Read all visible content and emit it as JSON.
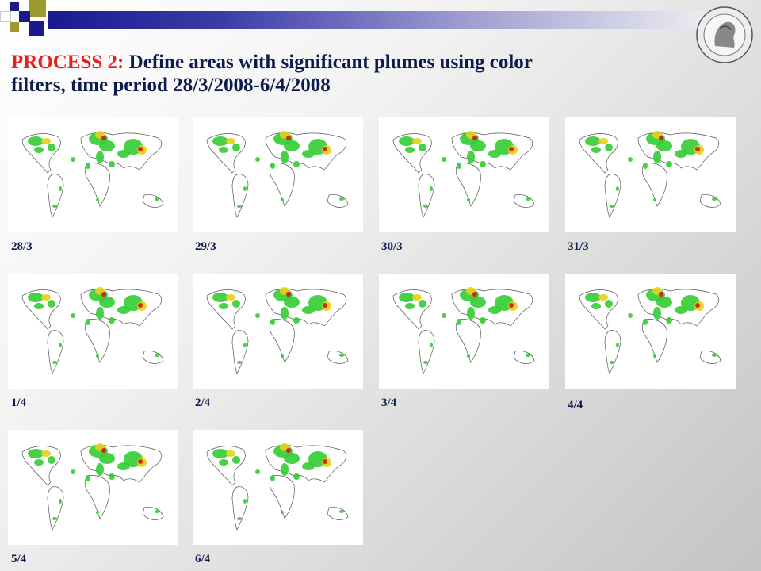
{
  "slide": {
    "title_accent": "PROCESS 2:",
    "title_rest_line1": " Define areas with significant plumes using color",
    "title_rest_line2": "filters, time period 28/3/2008-6/4/2008",
    "colors": {
      "title_accent": "#e8201c",
      "title_text": "#0d1b4c",
      "header_bar": "#1a1a8c",
      "plume_low": "#33cc33",
      "plume_mid": "#e6d21a",
      "plume_high": "#d41515"
    },
    "logo_icon": "university-seal-icon"
  },
  "maps": [
    {
      "date": "28/3"
    },
    {
      "date": "29/3"
    },
    {
      "date": "30/3"
    },
    {
      "date": "31/3"
    },
    {
      "date": "1/4"
    },
    {
      "date": "2/4"
    },
    {
      "date": "3/4"
    },
    {
      "date": "4/4"
    },
    {
      "date": "5/4"
    },
    {
      "date": "6/4"
    }
  ]
}
